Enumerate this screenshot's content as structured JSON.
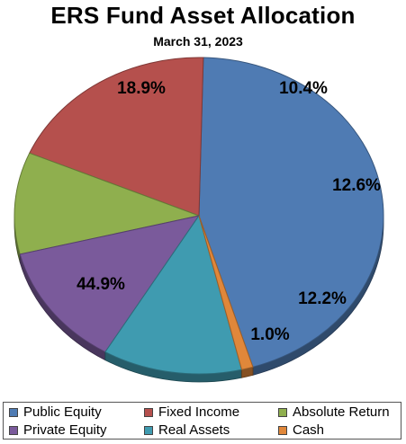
{
  "chart_data": {
    "type": "pie",
    "title": "ERS Fund Asset Allocation",
    "subtitle": "March 31, 2023",
    "legend_position": "bottom",
    "slices": [
      {
        "label": "Public Equity",
        "value": 44.9,
        "display": "44.9%",
        "color": "#4F7BB3"
      },
      {
        "label": "Fixed Income",
        "value": 18.9,
        "display": "18.9%",
        "color": "#B5504D"
      },
      {
        "label": "Absolute Return",
        "value": 10.4,
        "display": "10.4%",
        "color": "#8FAF4E"
      },
      {
        "label": "Private Equity",
        "value": 12.6,
        "display": "12.6%",
        "color": "#7A5A9B"
      },
      {
        "label": "Real Assets",
        "value": 12.2,
        "display": "12.2%",
        "color": "#3F9BB0"
      },
      {
        "label": "Cash",
        "value": 1.0,
        "display": "1.0%",
        "color": "#E0873A"
      }
    ]
  }
}
